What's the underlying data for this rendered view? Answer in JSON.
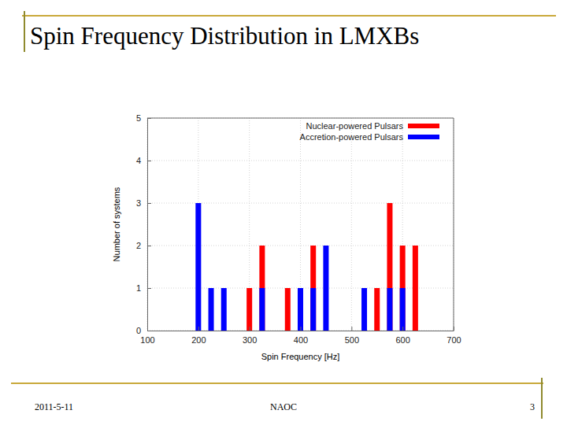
{
  "chart_data": {
    "type": "bar",
    "title": "Spin Frequency Distribution in LMXBs",
    "x_label": "Spin Frequency [Hz]",
    "y_label": "Number of systems",
    "x": [
      200,
      225,
      250,
      300,
      325,
      375,
      400,
      425,
      450,
      525,
      550,
      575,
      600,
      625
    ],
    "series": [
      {
        "name": "Nuclear-powered Pulsars",
        "color": "#ff0000",
        "values": [
          null,
          null,
          null,
          1,
          2,
          1,
          null,
          2,
          null,
          null,
          1,
          3,
          2,
          2
        ]
      },
      {
        "name": "Accretion-powered Pulsars",
        "color": "#0000ff",
        "values": [
          3,
          1,
          1,
          null,
          1,
          null,
          1,
          1,
          2,
          1,
          null,
          1,
          1,
          null
        ]
      }
    ],
    "xlim": [
      100,
      700
    ],
    "xticks": [
      100,
      200,
      300,
      400,
      500,
      600,
      700
    ],
    "ylim": [
      0,
      5
    ],
    "yticks": [
      0,
      1,
      2,
      3,
      4,
      5
    ],
    "grid": true,
    "legend": "upper right"
  },
  "footer": {
    "date": "2011-5-11",
    "org": "NAOC",
    "page": 3
  }
}
